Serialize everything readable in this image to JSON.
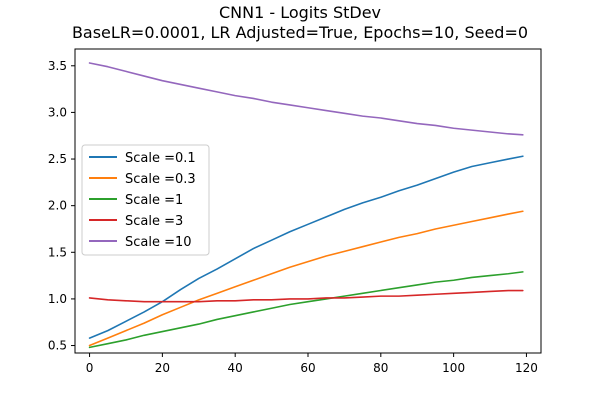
{
  "chart_data": {
    "type": "line",
    "title": "CNN1 - Logits StDev",
    "subtitle": "BaseLR=0.0001, LR Adjusted=True, Epochs=10, Seed=0",
    "xlabel": "",
    "ylabel": "",
    "xlim": [
      -4,
      124
    ],
    "ylim": [
      0.42,
      3.68
    ],
    "xticks": [
      0,
      20,
      40,
      60,
      80,
      100,
      120
    ],
    "yticks": [
      0.5,
      1.0,
      1.5,
      2.0,
      2.5,
      3.0,
      3.5
    ],
    "grid": false,
    "legend_position": "center-left",
    "x": [
      0,
      5,
      10,
      15,
      20,
      25,
      30,
      35,
      40,
      45,
      50,
      55,
      60,
      65,
      70,
      75,
      80,
      85,
      90,
      95,
      100,
      105,
      110,
      115,
      119
    ],
    "series": [
      {
        "name": "Scale =0.1",
        "color": "#1f77b4",
        "values": [
          0.58,
          0.66,
          0.76,
          0.86,
          0.97,
          1.1,
          1.22,
          1.32,
          1.43,
          1.54,
          1.63,
          1.72,
          1.8,
          1.88,
          1.96,
          2.03,
          2.09,
          2.16,
          2.22,
          2.29,
          2.36,
          2.42,
          2.46,
          2.5,
          2.53
        ]
      },
      {
        "name": "Scale =0.3",
        "color": "#ff7f0e",
        "values": [
          0.5,
          0.58,
          0.66,
          0.74,
          0.83,
          0.91,
          0.99,
          1.06,
          1.13,
          1.2,
          1.27,
          1.34,
          1.4,
          1.46,
          1.51,
          1.56,
          1.61,
          1.66,
          1.7,
          1.75,
          1.79,
          1.83,
          1.87,
          1.91,
          1.94
        ]
      },
      {
        "name": "Scale =1",
        "color": "#2ca02c",
        "values": [
          0.48,
          0.52,
          0.56,
          0.61,
          0.65,
          0.69,
          0.73,
          0.78,
          0.82,
          0.86,
          0.9,
          0.94,
          0.97,
          1.0,
          1.03,
          1.06,
          1.09,
          1.12,
          1.15,
          1.18,
          1.2,
          1.23,
          1.25,
          1.27,
          1.29
        ]
      },
      {
        "name": "Scale =3",
        "color": "#d62728",
        "values": [
          1.01,
          0.99,
          0.98,
          0.97,
          0.97,
          0.97,
          0.97,
          0.98,
          0.98,
          0.99,
          0.99,
          1.0,
          1.0,
          1.01,
          1.01,
          1.02,
          1.03,
          1.03,
          1.04,
          1.05,
          1.06,
          1.07,
          1.08,
          1.09,
          1.09
        ]
      },
      {
        "name": "Scale =10",
        "color": "#9467bd",
        "values": [
          3.53,
          3.49,
          3.44,
          3.39,
          3.34,
          3.3,
          3.26,
          3.22,
          3.18,
          3.15,
          3.11,
          3.08,
          3.05,
          3.02,
          2.99,
          2.96,
          2.94,
          2.91,
          2.88,
          2.86,
          2.83,
          2.81,
          2.79,
          2.77,
          2.76
        ]
      }
    ]
  }
}
